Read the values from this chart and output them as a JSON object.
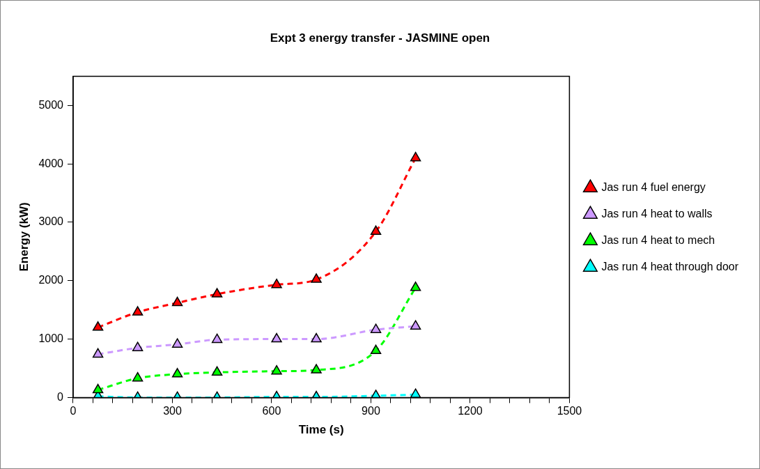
{
  "chart_data": {
    "type": "line",
    "title": "Expt 3 energy transfer - JASMINE open",
    "xlabel": "Time (s)",
    "ylabel": "Energy (kW)",
    "x": [
      75,
      195,
      315,
      435,
      615,
      735,
      915,
      1035
    ],
    "series": [
      {
        "name": "Jas run 4 fuel energy",
        "color": "#ff0000",
        "values": [
          1200,
          1460,
          1620,
          1770,
          1930,
          2020,
          2840,
          4100
        ]
      },
      {
        "name": "Jas run 4 heat to walls",
        "color": "#cc99ff",
        "values": [
          740,
          850,
          910,
          990,
          1000,
          1000,
          1160,
          1220
        ]
      },
      {
        "name": "Jas run 4 heat to mech",
        "color": "#00ff00",
        "values": [
          130,
          330,
          400,
          430,
          450,
          470,
          800,
          1880
        ]
      },
      {
        "name": "Jas run 4 heat through door",
        "color": "#00ffff",
        "values": [
          20,
          0,
          0,
          0,
          10,
          10,
          30,
          50
        ]
      }
    ],
    "xlim": [
      0,
      1500
    ],
    "xticks": [
      0,
      {
        "value": 60,
        "label": null
      },
      {
        "value": 120,
        "label": null
      },
      {
        "value": 180,
        "label": null
      },
      {
        "value": 240,
        "label": null
      },
      300,
      {
        "value": 360,
        "label": null
      },
      {
        "value": 420,
        "label": null
      },
      {
        "value": 480,
        "label": null
      },
      {
        "value": 540,
        "label": null
      },
      600,
      {
        "value": 660,
        "label": null
      },
      {
        "value": 720,
        "label": null
      },
      {
        "value": 780,
        "label": null
      },
      {
        "value": 840,
        "label": null
      },
      900,
      {
        "value": 960,
        "label": null
      },
      {
        "value": 1020,
        "label": null
      },
      {
        "value": 1080,
        "label": null
      },
      {
        "value": 1140,
        "label": null
      },
      1200,
      {
        "value": 1260,
        "label": null
      },
      {
        "value": 1320,
        "label": null
      },
      {
        "value": 1380,
        "label": null
      },
      {
        "value": 1440,
        "label": null
      },
      1500
    ],
    "ylim": [
      0,
      5500
    ],
    "yticks": [
      0,
      1000,
      2000,
      3000,
      4000,
      5000
    ],
    "grid": false,
    "legend": "right",
    "marker": "triangle",
    "line_style": "dashed"
  }
}
